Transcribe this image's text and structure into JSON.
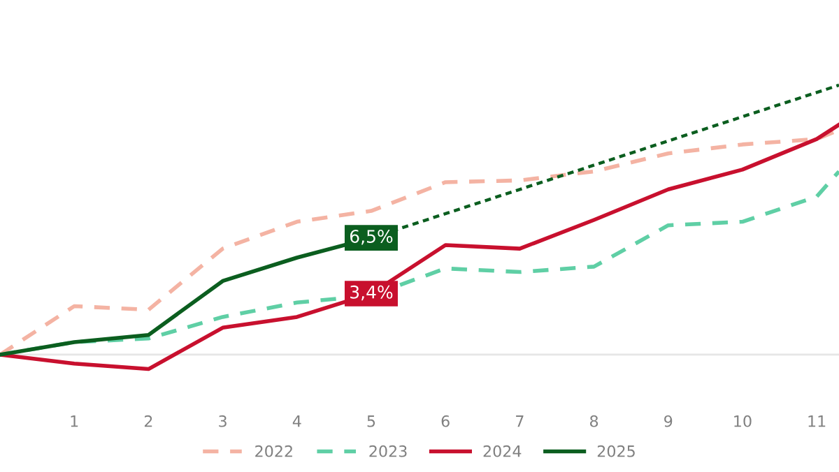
{
  "chart_data": {
    "type": "line",
    "x": [
      0,
      1,
      2,
      3,
      4,
      5,
      6,
      7,
      8,
      9,
      10,
      11,
      11.3
    ],
    "xlim": [
      0,
      11.3
    ],
    "xticks": [
      1,
      2,
      3,
      4,
      5,
      6,
      7,
      8,
      9,
      10,
      11
    ],
    "tick_labels": "x",
    "grid": false,
    "legend": "bottom",
    "marker": "none",
    "ref_lines": [
      {
        "axis": "y",
        "value": 0,
        "color": "#e6e6e6"
      }
    ],
    "series": [
      {
        "name": "2022",
        "color": "#f4b3a3",
        "line_style": "dashed",
        "values": [
          0,
          2.7,
          2.5,
          5.9,
          7.4,
          8.0,
          9.6,
          9.7,
          10.2,
          11.2,
          11.7,
          12.0,
          12.5
        ]
      },
      {
        "name": "2023",
        "color": "#5fcfa5",
        "line_style": "dashed",
        "values": [
          0,
          0.7,
          0.9,
          2.1,
          2.9,
          3.3,
          4.8,
          4.6,
          4.9,
          7.2,
          7.4,
          8.8,
          10.2
        ]
      },
      {
        "name": "2024",
        "color": "#c8102e",
        "line_style": "solid",
        "values": [
          0,
          -0.5,
          -0.8,
          1.5,
          2.1,
          3.4,
          6.1,
          5.9,
          7.5,
          9.2,
          10.3,
          12.0,
          12.8
        ],
        "value_labels": [
          null,
          null,
          null,
          null,
          null,
          "3,4%",
          null,
          null,
          null,
          null,
          null,
          null,
          null
        ]
      },
      {
        "name": "2025",
        "color": "#0b5e1f",
        "line_style": "solid",
        "values": [
          0,
          0.7,
          1.1,
          4.1,
          5.4,
          6.5,
          null,
          null,
          null,
          null,
          null,
          null,
          null
        ],
        "value_labels": [
          null,
          null,
          null,
          null,
          null,
          "6,5%",
          null,
          null,
          null,
          null,
          null,
          null,
          null
        ]
      },
      {
        "color": "#0b5e1f",
        "line_style": "dotted",
        "x": [
          5,
          11.3
        ],
        "values": [
          6.5,
          15.0
        ]
      }
    ]
  }
}
